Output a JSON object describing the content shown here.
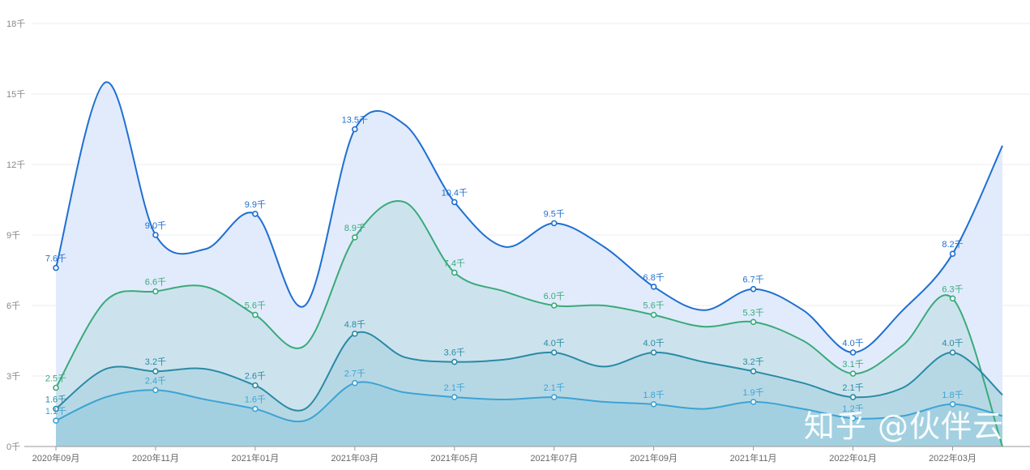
{
  "chart_data": {
    "type": "area",
    "title": "",
    "xlabel": "",
    "ylabel": "",
    "ylim": [
      0,
      18
    ],
    "y_ticks": [
      "0千",
      "3千",
      "6千",
      "9千",
      "12千",
      "15千",
      "18千"
    ],
    "x_tick_labels": [
      "2020年09月",
      "2020年11月",
      "2021年01月",
      "2021年03月",
      "2021年05月",
      "2021年07月",
      "2021年09月",
      "2021年11月",
      "2022年01月",
      "2022年03月"
    ],
    "x": [
      "2020-09",
      "2020-10",
      "2020-11",
      "2020-12",
      "2021-01",
      "2021-02",
      "2021-03",
      "2021-04",
      "2021-05",
      "2021-06",
      "2021-07",
      "2021-08",
      "2021-09",
      "2021-10",
      "2021-11",
      "2021-12",
      "2022-01",
      "2022-02",
      "2022-03",
      "2022-04"
    ],
    "grid": true,
    "series": [
      {
        "color": "#1f6fd1",
        "fill": "#dce8fb",
        "values": [
          7.6,
          15.5,
          9.0,
          8.4,
          9.9,
          6.0,
          13.5,
          13.7,
          10.4,
          8.5,
          9.5,
          8.5,
          6.8,
          5.8,
          6.7,
          5.8,
          4.0,
          5.8,
          8.2,
          12.8
        ]
      },
      {
        "color": "#3aaa7a",
        "fill": "#c8e2ea",
        "values": [
          2.5,
          6.2,
          6.6,
          6.8,
          5.6,
          4.3,
          8.9,
          10.4,
          7.4,
          6.6,
          6.0,
          6.0,
          5.6,
          5.1,
          5.3,
          4.5,
          3.1,
          4.3,
          6.3,
          0.0
        ]
      },
      {
        "color": "#2a8aa5",
        "fill": "#b1d6e3",
        "values": [
          1.6,
          3.3,
          3.2,
          3.3,
          2.6,
          1.6,
          4.8,
          3.8,
          3.6,
          3.7,
          4.0,
          3.4,
          4.0,
          3.6,
          3.2,
          2.7,
          2.1,
          2.5,
          4.0,
          2.2
        ]
      },
      {
        "color": "#3ea3d3",
        "fill": "#a0cfdf",
        "values": [
          1.1,
          2.1,
          2.4,
          2.0,
          1.6,
          1.1,
          2.7,
          2.3,
          2.1,
          2.0,
          2.1,
          1.9,
          1.8,
          1.6,
          1.9,
          1.6,
          1.2,
          1.3,
          1.8,
          1.3
        ]
      }
    ],
    "data_labels": [
      {
        "series": 0,
        "index": 0,
        "text": "7.6千"
      },
      {
        "series": 0,
        "index": 2,
        "text": "9.0千"
      },
      {
        "series": 0,
        "index": 4,
        "text": "9.9千"
      },
      {
        "series": 0,
        "index": 6,
        "text": "13.5千"
      },
      {
        "series": 0,
        "index": 8,
        "text": "10.4千"
      },
      {
        "series": 0,
        "index": 10,
        "text": "9.5千"
      },
      {
        "series": 0,
        "index": 12,
        "text": "6.8千"
      },
      {
        "series": 0,
        "index": 14,
        "text": "6.7千"
      },
      {
        "series": 0,
        "index": 16,
        "text": "4.0千"
      },
      {
        "series": 0,
        "index": 18,
        "text": "8.2千"
      },
      {
        "series": 1,
        "index": 0,
        "text": "2.5千"
      },
      {
        "series": 1,
        "index": 2,
        "text": "6.6千"
      },
      {
        "series": 1,
        "index": 4,
        "text": "5.6千"
      },
      {
        "series": 1,
        "index": 6,
        "text": "8.9千"
      },
      {
        "series": 1,
        "index": 8,
        "text": "7.4千"
      },
      {
        "series": 1,
        "index": 10,
        "text": "6.0千"
      },
      {
        "series": 1,
        "index": 12,
        "text": "5.6千"
      },
      {
        "series": 1,
        "index": 14,
        "text": "5.3千"
      },
      {
        "series": 1,
        "index": 16,
        "text": "3.1千"
      },
      {
        "series": 1,
        "index": 18,
        "text": "6.3千"
      },
      {
        "series": 2,
        "index": 0,
        "text": "1.6千"
      },
      {
        "series": 2,
        "index": 2,
        "text": "3.2千"
      },
      {
        "series": 2,
        "index": 4,
        "text": "2.6千"
      },
      {
        "series": 2,
        "index": 6,
        "text": "4.8千"
      },
      {
        "series": 2,
        "index": 8,
        "text": "3.6千"
      },
      {
        "series": 2,
        "index": 10,
        "text": "4.0千"
      },
      {
        "series": 2,
        "index": 12,
        "text": "4.0千"
      },
      {
        "series": 2,
        "index": 14,
        "text": "3.2千"
      },
      {
        "series": 2,
        "index": 16,
        "text": "2.1千"
      },
      {
        "series": 2,
        "index": 18,
        "text": "4.0千"
      },
      {
        "series": 3,
        "index": 0,
        "text": "1.1千"
      },
      {
        "series": 3,
        "index": 2,
        "text": "2.4千"
      },
      {
        "series": 3,
        "index": 4,
        "text": "1.6千"
      },
      {
        "series": 3,
        "index": 6,
        "text": "2.7千"
      },
      {
        "series": 3,
        "index": 8,
        "text": "2.1千"
      },
      {
        "series": 3,
        "index": 10,
        "text": "2.1千"
      },
      {
        "series": 3,
        "index": 12,
        "text": "1.8千"
      },
      {
        "series": 3,
        "index": 14,
        "text": "1.9千"
      },
      {
        "series": 3,
        "index": 16,
        "text": "1.2千"
      },
      {
        "series": 3,
        "index": 18,
        "text": "1.8千"
      }
    ]
  },
  "watermark": "知乎 @伙伴云"
}
